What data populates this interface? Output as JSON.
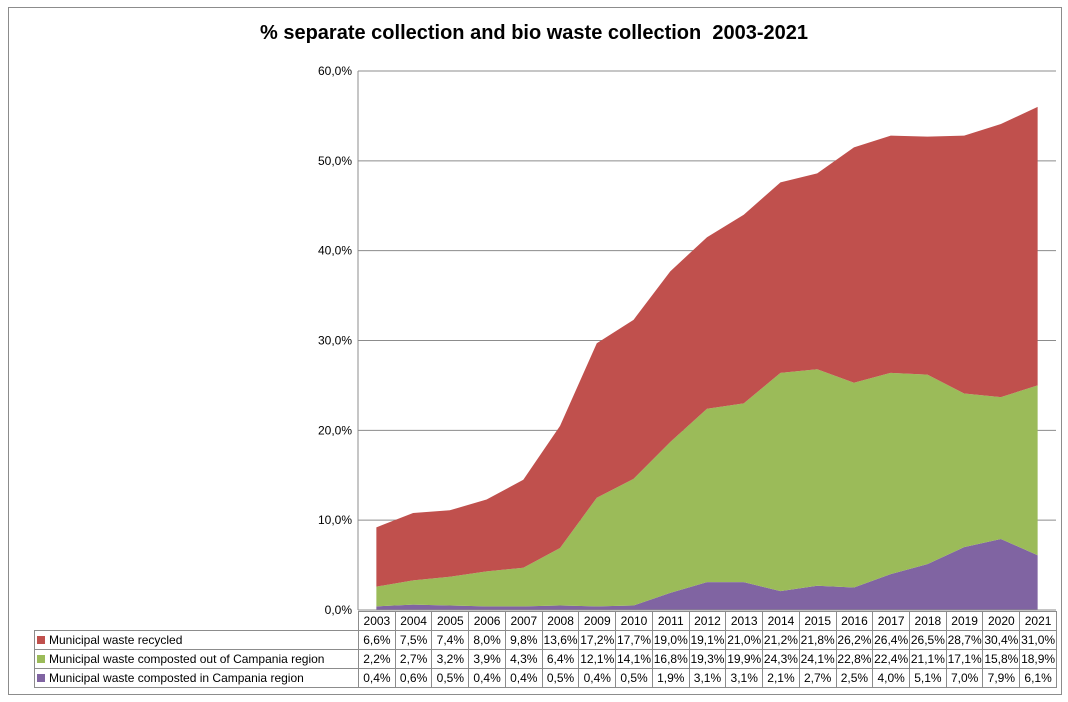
{
  "chart_data": {
    "type": "area",
    "stacked": true,
    "title": "% separate collection and bio waste collection  2003-2021",
    "categories": [
      "2003",
      "2004",
      "2005",
      "2006",
      "2007",
      "2008",
      "2009",
      "2010",
      "2011",
      "2012",
      "2013",
      "2014",
      "2015",
      "2016",
      "2017",
      "2018",
      "2019",
      "2020",
      "2021"
    ],
    "ylim": [
      0,
      60
    ],
    "yticks": [
      "0,0%",
      "10,0%",
      "20,0%",
      "30,0%",
      "40,0%",
      "50,0%",
      "60,0%"
    ],
    "grid": true,
    "legend": "data table below chart",
    "series": [
      {
        "name": "Municipal waste recycled",
        "color": "#c0504d",
        "values": [
          6.6,
          7.5,
          7.4,
          8.0,
          9.8,
          13.6,
          17.2,
          17.7,
          19.0,
          19.1,
          21.0,
          21.2,
          21.8,
          26.2,
          26.4,
          26.5,
          28.7,
          30.4,
          31.0
        ],
        "labels": [
          "6,6%",
          "7,5%",
          "7,4%",
          "8,0%",
          "9,8%",
          "13,6%",
          "17,2%",
          "17,7%",
          "19,0%",
          "19,1%",
          "21,0%",
          "21,2%",
          "21,8%",
          "26,2%",
          "26,4%",
          "26,5%",
          "28,7%",
          "30,4%",
          "31,0%"
        ]
      },
      {
        "name": "Municipal waste composted out of Campania region",
        "color": "#9bbb59",
        "values": [
          2.2,
          2.7,
          3.2,
          3.9,
          4.3,
          6.4,
          12.1,
          14.1,
          16.8,
          19.3,
          19.9,
          24.3,
          24.1,
          22.8,
          22.4,
          21.1,
          17.1,
          15.8,
          18.9
        ],
        "labels": [
          "2,2%",
          "2,7%",
          "3,2%",
          "3,9%",
          "4,3%",
          "6,4%",
          "12,1%",
          "14,1%",
          "16,8%",
          "19,3%",
          "19,9%",
          "24,3%",
          "24,1%",
          "22,8%",
          "22,4%",
          "21,1%",
          "17,1%",
          "15,8%",
          "18,9%"
        ]
      },
      {
        "name": "Municipal waste composted in Campania region",
        "color": "#8064a2",
        "values": [
          0.4,
          0.6,
          0.5,
          0.4,
          0.4,
          0.5,
          0.4,
          0.5,
          1.9,
          3.1,
          3.1,
          2.1,
          2.7,
          2.5,
          4.0,
          5.1,
          7.0,
          7.9,
          6.1
        ],
        "labels": [
          "0,4%",
          "0,6%",
          "0,5%",
          "0,4%",
          "0,4%",
          "0,5%",
          "0,4%",
          "0,5%",
          "1,9%",
          "3,1%",
          "3,1%",
          "2,1%",
          "2,7%",
          "2,5%",
          "4,0%",
          "5,1%",
          "7,0%",
          "7,9%",
          "6,1%"
        ]
      }
    ]
  }
}
